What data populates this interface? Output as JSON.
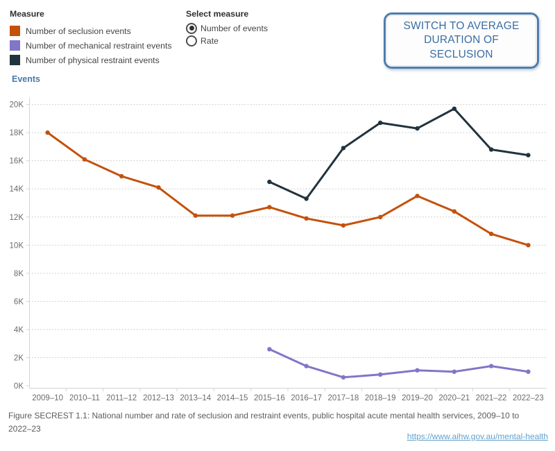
{
  "legend": {
    "title": "Measure",
    "items": [
      {
        "label": "Number of seclusion events",
        "color": "#c4510b"
      },
      {
        "label": "Number of mechanical restraint events",
        "color": "#8276c6"
      },
      {
        "label": "Number of physical restraint events",
        "color": "#21333e"
      }
    ]
  },
  "select_measure": {
    "title": "Select measure",
    "options": [
      {
        "label": "Number of events",
        "selected": true
      },
      {
        "label": "Rate",
        "selected": false
      }
    ]
  },
  "switch_button": {
    "label": "SWITCH TO AVERAGE DURATION OF SECLUSION"
  },
  "chart_data": {
    "type": "line",
    "title": "",
    "ylabel": "Events",
    "xlabel": "",
    "unit": "thousands of events",
    "ylim": [
      0,
      20
    ],
    "ytick_step": 2,
    "y_tick_labels": [
      "0K",
      "2K",
      "4K",
      "6K",
      "8K",
      "10K",
      "12K",
      "14K",
      "16K",
      "18K",
      "20K"
    ],
    "grid": "horizontal-dotted",
    "legend_position": "top-left",
    "categories": [
      "2009–10",
      "2010–11",
      "2011–12",
      "2012–13",
      "2013–14",
      "2014–15",
      "2015–16",
      "2016–17",
      "2017–18",
      "2018–19",
      "2019–20",
      "2020–21",
      "2021–22",
      "2022–23"
    ],
    "series": [
      {
        "name": "Number of seclusion events",
        "color": "#c4510b",
        "values": [
          18.0,
          16.1,
          14.9,
          14.1,
          12.1,
          12.1,
          12.7,
          11.9,
          11.4,
          12.0,
          13.5,
          12.4,
          10.8,
          10.0
        ]
      },
      {
        "name": "Number of mechanical restraint events",
        "color": "#8276c6",
        "values": [
          null,
          null,
          null,
          null,
          null,
          null,
          2.6,
          1.4,
          0.6,
          0.8,
          1.1,
          1.0,
          1.4,
          1.0
        ]
      },
      {
        "name": "Number of physical restraint events",
        "color": "#21333e",
        "values": [
          null,
          null,
          null,
          null,
          null,
          null,
          14.5,
          13.3,
          16.9,
          18.7,
          18.3,
          19.7,
          16.8,
          16.4
        ]
      }
    ]
  },
  "footer": {
    "caption": "Figure SECREST 1.1: National number and rate of seclusion and restraint events, public hospital acute mental health services, 2009–10 to 2022–23",
    "link": "https://www.aihw.gov.au/mental-health"
  }
}
